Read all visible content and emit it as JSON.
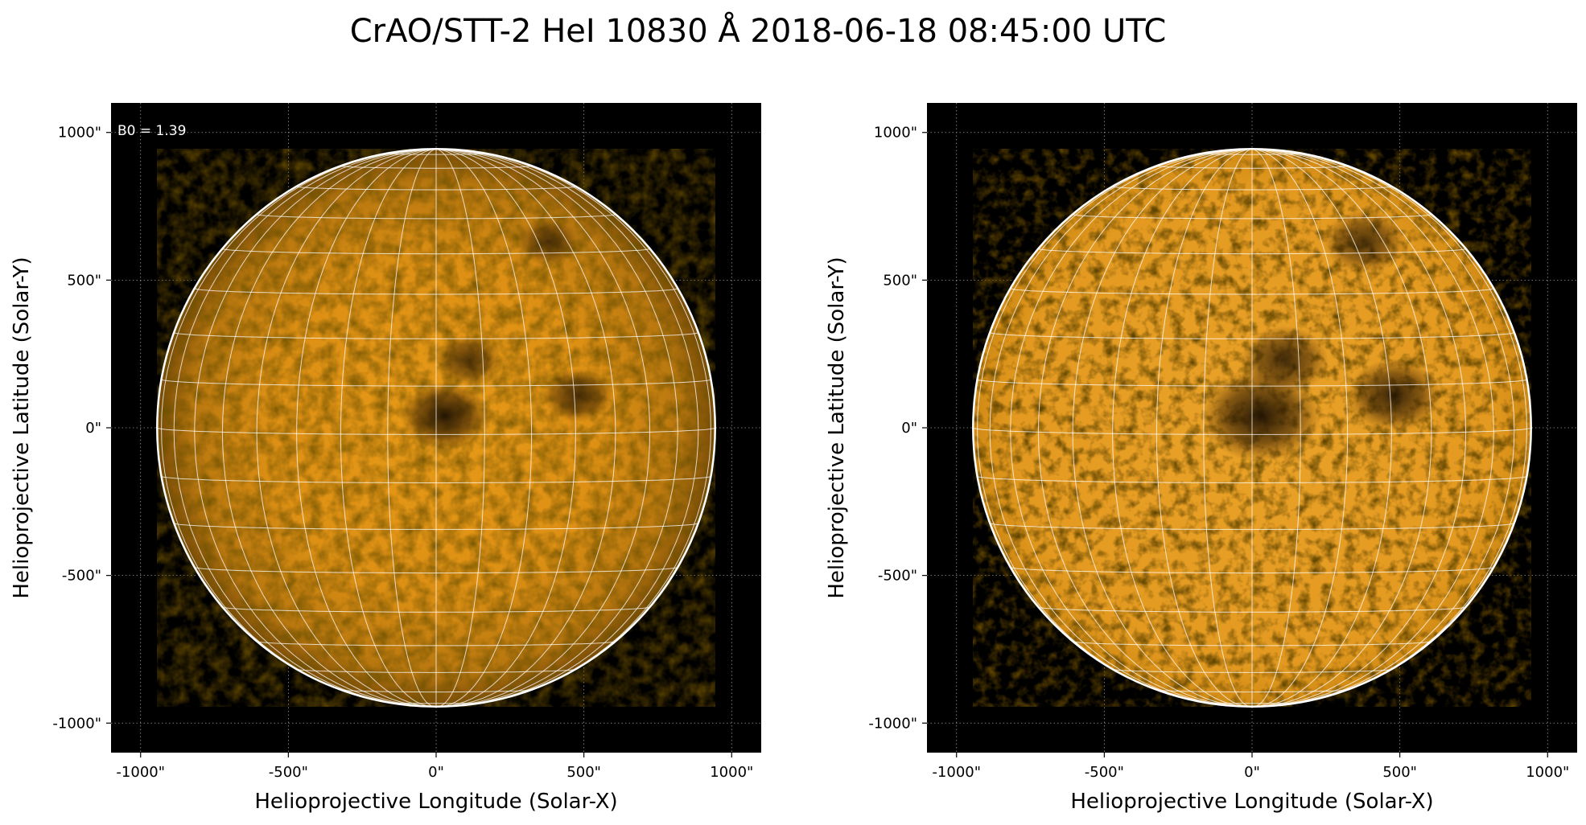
{
  "figure": {
    "title": "CrAO/STT-2 HeI 10830 Å 2018-06-18 08:45:00 UTC"
  },
  "panels": [
    {
      "id": "left",
      "annotation": "B0 = 1.39",
      "xlabel": "Helioprojective Longitude (Solar-X)",
      "ylabel": "Helioprojective Latitude (Solar-Y)",
      "x_ticks": [
        "-1000\"",
        "-500\"",
        "0\"",
        "500\"",
        "1000\""
      ],
      "y_ticks": [
        "1000\"",
        "500\"",
        "0\"",
        "-500\"",
        "-1000\""
      ],
      "x_range_arcsec": [
        -1100,
        1100
      ],
      "y_range_arcsec": [
        -1100,
        1100
      ],
      "solar_radius_arcsec": 944,
      "style": "limb-darkened",
      "colors": {
        "disk_center": "#e89a17",
        "disk_edge": "#7a4c08",
        "background": "#000000",
        "grid": "#ffffff"
      }
    },
    {
      "id": "right",
      "annotation": "",
      "xlabel": "Helioprojective Longitude (Solar-X)",
      "ylabel": "Helioprojective Latitude (Solar-Y)",
      "x_ticks": [
        "-1000\"",
        "-500\"",
        "0\"",
        "500\"",
        "1000\""
      ],
      "y_ticks": [
        "1000\"",
        "500\"",
        "0\"",
        "-500\"",
        "-1000\""
      ],
      "x_range_arcsec": [
        -1100,
        1100
      ],
      "y_range_arcsec": [
        -1100,
        1100
      ],
      "solar_radius_arcsec": 944,
      "style": "limb-corrected",
      "colors": {
        "disk_center": "#eaa228",
        "disk_edge": "#d08a14",
        "background": "#000000",
        "grid": "#ffffff"
      }
    }
  ],
  "features": [
    {
      "name": "central-active-region",
      "x_arcsec": 30,
      "y_arcsec": 40,
      "strength": 1.0
    },
    {
      "name": "active-region-east",
      "x_arcsec": 480,
      "y_arcsec": 110,
      "strength": 0.6
    },
    {
      "name": "plage-north",
      "x_arcsec": 110,
      "y_arcsec": 230,
      "strength": 0.5
    },
    {
      "name": "filament-north",
      "x_arcsec": 380,
      "y_arcsec": 630,
      "strength": 0.4
    }
  ]
}
